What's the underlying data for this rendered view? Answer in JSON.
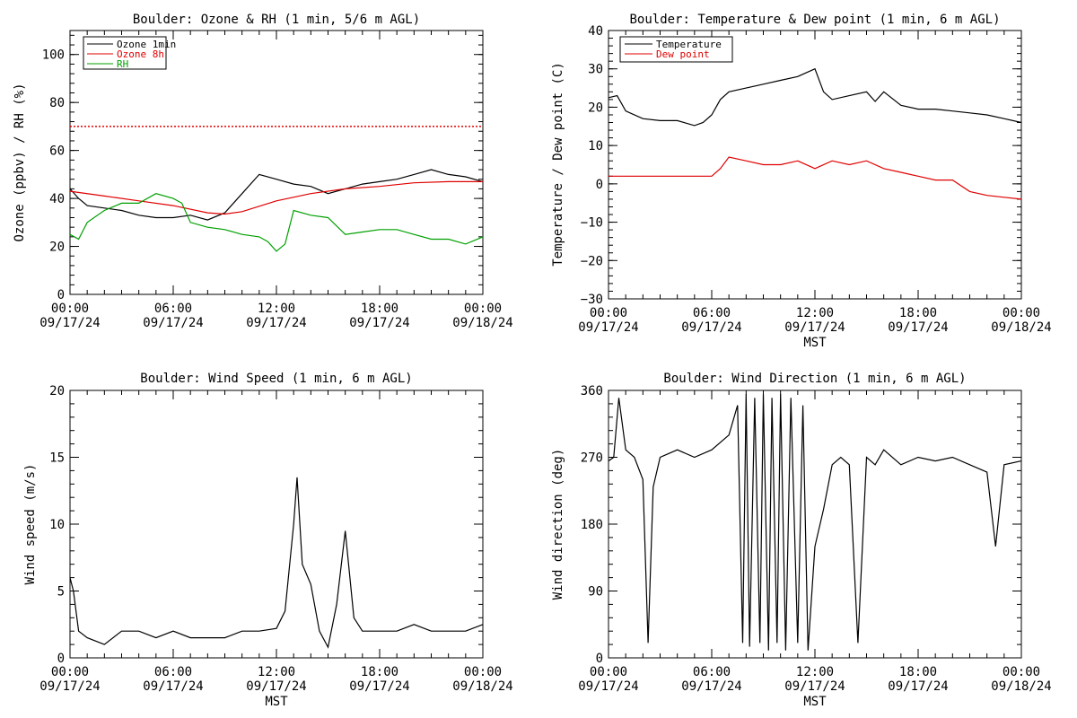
{
  "charts": [
    {
      "title": "Boulder: Ozone & RH (1 min, 5/6 m AGL)",
      "ylabel": "Ozone (ppbv) / RH (%)",
      "xlabel": "",
      "yticks": [
        "0",
        "20",
        "40",
        "60",
        "80",
        "100"
      ],
      "legend": [
        "Ozone 1min",
        "Ozone 8h",
        "RH"
      ]
    },
    {
      "title": "Boulder: Temperature & Dew point (1 min, 6 m AGL)",
      "ylabel": "Temperature / Dew point (C)",
      "xlabel": "MST",
      "yticks": [
        "−30",
        "−20",
        "−10",
        "0",
        "10",
        "20",
        "30",
        "40"
      ],
      "legend": [
        "Temperature",
        "Dew point"
      ]
    },
    {
      "title": "Boulder: Wind Speed (1 min, 6 m AGL)",
      "ylabel": "Wind speed (m/s)",
      "xlabel": "MST",
      "yticks": [
        "0",
        "5",
        "10",
        "15",
        "20"
      ],
      "legend": []
    },
    {
      "title": "Boulder: Wind Direction (1 min, 6 m AGL)",
      "ylabel": "Wind direction (deg)",
      "xlabel": "MST",
      "yticks": [
        "0",
        "90",
        "180",
        "270",
        "360"
      ],
      "legend": []
    }
  ],
  "x_tick_times": [
    "00:00",
    "06:00",
    "12:00",
    "18:00",
    "00:00"
  ],
  "x_tick_dates": [
    "09/17/24",
    "09/17/24",
    "09/17/24",
    "09/17/24",
    "09/18/24"
  ],
  "colors": {
    "black": "#000000",
    "red": "#e00000",
    "green": "#00a000"
  },
  "chart_data": [
    {
      "type": "line",
      "x_unit": "hours since 09/17/24 00:00 MST",
      "xlim": [
        0,
        24
      ],
      "ylim": [
        0,
        110
      ],
      "series": [
        {
          "name": "Ozone 1min",
          "color": "#000000",
          "x": [
            0,
            0.5,
            1,
            2,
            3,
            4,
            5,
            6,
            7,
            8,
            9,
            10,
            11,
            12,
            13,
            14,
            15,
            16,
            17,
            18,
            19,
            20,
            21,
            22,
            23,
            24
          ],
          "y": [
            44,
            40,
            37,
            36,
            35,
            33,
            32,
            32,
            33,
            31,
            34,
            42,
            50,
            48,
            46,
            45,
            42,
            44,
            46,
            47,
            48,
            50,
            52,
            50,
            49,
            47
          ]
        },
        {
          "name": "Ozone 8h",
          "color": "#e00000",
          "x": [
            0,
            2,
            4,
            6,
            8,
            9,
            10,
            12,
            14,
            16,
            18,
            20,
            22,
            24
          ],
          "y": [
            43,
            41,
            39,
            37,
            34,
            33.5,
            34.5,
            39,
            42,
            44,
            45,
            46.5,
            47,
            47
          ]
        },
        {
          "name": "RH",
          "color": "#00a000",
          "x": [
            0,
            0.5,
            1,
            2,
            3,
            4,
            5,
            6,
            6.5,
            7,
            8,
            9,
            10,
            11,
            11.5,
            12,
            12.5,
            13,
            14,
            15,
            16,
            17,
            18,
            19,
            20,
            21,
            22,
            23,
            24
          ],
          "y": [
            25,
            23,
            30,
            35,
            38,
            38,
            42,
            40,
            38,
            30,
            28,
            27,
            25,
            24,
            22,
            18,
            21,
            35,
            33,
            32,
            25,
            26,
            27,
            27,
            25,
            23,
            23,
            21,
            24
          ]
        },
        {
          "name": "",
          "color": "#e00000",
          "dashed": true,
          "x": [
            0,
            24
          ],
          "y": [
            70,
            70
          ]
        }
      ]
    },
    {
      "type": "line",
      "x_unit": "hours since 09/17/24 00:00 MST",
      "xlim": [
        0,
        24
      ],
      "ylim": [
        -30,
        40
      ],
      "series": [
        {
          "name": "Temperature",
          "color": "#000000",
          "x": [
            0,
            0.5,
            1,
            2,
            3,
            4,
            5,
            5.5,
            6,
            6.5,
            7,
            8,
            9,
            10,
            11,
            12,
            12.5,
            13,
            14,
            15,
            15.5,
            16,
            17,
            18,
            19,
            20,
            21,
            22,
            23,
            24
          ],
          "y": [
            22.5,
            23,
            19,
            17,
            16.5,
            16.5,
            15.2,
            16,
            18,
            22,
            24,
            25,
            26,
            27,
            28,
            30,
            24,
            22,
            23,
            24,
            21.5,
            24,
            20.5,
            19.5,
            19.5,
            19,
            18.5,
            18,
            17,
            16
          ]
        },
        {
          "name": "Dew point",
          "color": "#e00000",
          "x": [
            0,
            1,
            2,
            3,
            4,
            5,
            6,
            6.5,
            7,
            8,
            9,
            10,
            11,
            12,
            13,
            14,
            15,
            16,
            17,
            18,
            19,
            20,
            21,
            22,
            23,
            24
          ],
          "y": [
            2,
            2,
            2,
            2,
            2,
            2,
            2,
            4,
            7,
            6,
            5,
            5,
            6,
            4,
            6,
            5,
            6,
            4,
            3,
            2,
            1,
            1,
            -2,
            -3,
            -3.5,
            -4
          ]
        }
      ]
    },
    {
      "type": "line",
      "x_unit": "hours since 09/17/24 00:00 MST",
      "xlim": [
        0,
        24
      ],
      "ylim": [
        0,
        20
      ],
      "series": [
        {
          "name": "",
          "color": "#000000",
          "x": [
            0,
            0.2,
            0.5,
            1,
            2,
            3,
            4,
            5,
            6,
            7,
            8,
            9,
            10,
            11,
            12,
            12.5,
            13,
            13.2,
            13.5,
            14,
            14.5,
            15,
            15.5,
            16,
            16.5,
            17,
            18,
            19,
            20,
            21,
            22,
            23,
            24
          ],
          "y": [
            6,
            5,
            2,
            1.5,
            1,
            2,
            2,
            1.5,
            2,
            1.5,
            1.5,
            1.5,
            2,
            2,
            2.2,
            3.5,
            10,
            13.5,
            7,
            5.5,
            2,
            0.8,
            4,
            9.5,
            3,
            2,
            2,
            2,
            2.5,
            2,
            2,
            2,
            2.5
          ]
        }
      ]
    },
    {
      "type": "line",
      "x_unit": "hours since 09/17/24 00:00 MST",
      "xlim": [
        0,
        24
      ],
      "ylim": [
        0,
        360
      ],
      "series": [
        {
          "name": "",
          "color": "#000000",
          "x": [
            0,
            0.3,
            0.6,
            1,
            1.5,
            2,
            2.3,
            2.6,
            3,
            4,
            5,
            6,
            7,
            7.5,
            7.8,
            8,
            8.2,
            8.5,
            8.8,
            9,
            9.3,
            9.5,
            9.8,
            10,
            10.3,
            10.6,
            11,
            11.3,
            11.6,
            12,
            12.5,
            13,
            13.5,
            14,
            14.5,
            15,
            15.5,
            16,
            17,
            18,
            19,
            20,
            21,
            22,
            22.5,
            23,
            24
          ],
          "y": [
            265,
            270,
            350,
            280,
            270,
            240,
            20,
            230,
            270,
            280,
            270,
            280,
            300,
            340,
            20,
            355,
            15,
            350,
            20,
            355,
            10,
            350,
            20,
            355,
            10,
            350,
            20,
            340,
            10,
            150,
            200,
            260,
            270,
            260,
            20,
            270,
            260,
            280,
            260,
            270,
            265,
            270,
            260,
            250,
            150,
            260,
            265
          ]
        }
      ]
    }
  ]
}
